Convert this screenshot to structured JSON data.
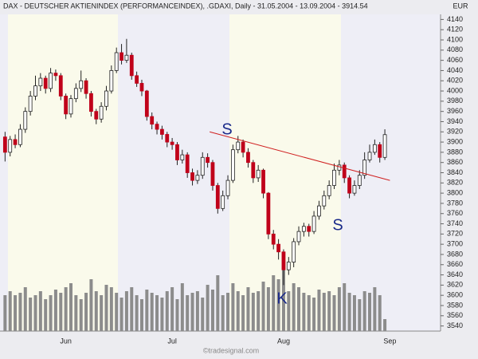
{
  "chart_data": {
    "type": "candlestick",
    "title": "DAX - DEUTSCHER AKTIENINDEX (PERFORMANCEINDEX), .GDAXI, Daily - 31.05.2004 - 13.09.2004 - 3914.54",
    "currency": "EUR",
    "credit": "©tradesignal.com",
    "up_color": "#ffffff",
    "down_color": "#c0001a",
    "volume_color": "#8c8c8c",
    "trendline_color": "#d02020",
    "open": [
      3910,
      3880,
      3905,
      3895,
      3925,
      3960,
      3990,
      4010,
      4025,
      4005,
      4035,
      4030,
      3990,
      3955,
      3985,
      4005,
      4020,
      3995,
      3960,
      3945,
      3970,
      4000,
      4040,
      4075,
      4060,
      4070,
      4030,
      4015,
      4000,
      3950,
      3935,
      3925,
      3915,
      3900,
      3895,
      3865,
      3875,
      3840,
      3825,
      3835,
      3870,
      3860,
      3815,
      3770,
      3795,
      3825,
      3885,
      3900,
      3880,
      3860,
      3830,
      3845,
      3800,
      3720,
      3700,
      3685,
      3650,
      3665,
      3705,
      3725,
      3735,
      3725,
      3755,
      3775,
      3795,
      3815,
      3845,
      3855,
      3830,
      3800,
      3815,
      3835,
      3865,
      3880,
      3895,
      3870
    ],
    "high": [
      3920,
      3912,
      3915,
      3935,
      3968,
      4000,
      4030,
      4035,
      4030,
      4045,
      4042,
      4035,
      3995,
      3992,
      4015,
      4040,
      4025,
      4000,
      3965,
      3978,
      4010,
      4050,
      4085,
      4092,
      4102,
      4075,
      4038,
      4022,
      4002,
      3958,
      3940,
      3932,
      3920,
      3908,
      3900,
      3885,
      3880,
      3848,
      3845,
      3880,
      3878,
      3865,
      3820,
      3805,
      3835,
      3895,
      3912,
      3905,
      3888,
      3865,
      3855,
      3848,
      3802,
      3728,
      3710,
      3690,
      3675,
      3712,
      3735,
      3742,
      3740,
      3765,
      3785,
      3805,
      3825,
      3858,
      3865,
      3860,
      3835,
      3825,
      3845,
      3880,
      3895,
      3905,
      3900,
      3925
    ],
    "low": [
      3862,
      3872,
      3888,
      3890,
      3918,
      3952,
      3982,
      4000,
      3995,
      3998,
      4020,
      3982,
      3945,
      3948,
      3978,
      3998,
      3985,
      3950,
      3935,
      3938,
      3962,
      3995,
      4035,
      4052,
      4055,
      4022,
      4008,
      3990,
      3942,
      3925,
      3915,
      3905,
      3890,
      3885,
      3855,
      3858,
      3830,
      3815,
      3818,
      3828,
      3850,
      3805,
      3760,
      3765,
      3788,
      3820,
      3878,
      3870,
      3850,
      3820,
      3822,
      3790,
      3710,
      3690,
      3670,
      3620,
      3640,
      3655,
      3698,
      3715,
      3715,
      3720,
      3748,
      3768,
      3788,
      3808,
      3835,
      3820,
      3790,
      3795,
      3808,
      3828,
      3860,
      3875,
      3860,
      3865
    ],
    "close": [
      3880,
      3905,
      3895,
      3925,
      3960,
      3990,
      4010,
      4025,
      4005,
      4035,
      4030,
      3990,
      3955,
      3985,
      4005,
      4020,
      3995,
      3960,
      3945,
      3970,
      4000,
      4040,
      4075,
      4060,
      4070,
      4030,
      4015,
      4000,
      3950,
      3935,
      3925,
      3915,
      3900,
      3895,
      3865,
      3875,
      3840,
      3825,
      3835,
      3870,
      3860,
      3815,
      3770,
      3795,
      3825,
      3885,
      3900,
      3880,
      3860,
      3830,
      3845,
      3800,
      3720,
      3700,
      3685,
      3650,
      3665,
      3705,
      3725,
      3735,
      3725,
      3755,
      3775,
      3795,
      3815,
      3845,
      3855,
      3830,
      3800,
      3815,
      3835,
      3865,
      3880,
      3895,
      3870,
      3914.54
    ],
    "volume": [
      45,
      50,
      45,
      48,
      55,
      42,
      45,
      50,
      40,
      45,
      52,
      48,
      55,
      60,
      45,
      40,
      48,
      65,
      50,
      45,
      58,
      55,
      48,
      42,
      50,
      55,
      45,
      40,
      52,
      48,
      45,
      42,
      50,
      55,
      40,
      60,
      45,
      48,
      50,
      42,
      58,
      52,
      70,
      45,
      48,
      60,
      50,
      45,
      55,
      48,
      50,
      62,
      55,
      70,
      65,
      95,
      50,
      60,
      55,
      48,
      45,
      42,
      52,
      48,
      50,
      45,
      55,
      60,
      48,
      45,
      40,
      50,
      48,
      55,
      45,
      15
    ],
    "vlim": [
      0,
      100
    ],
    "xlim": [
      -1,
      86
    ],
    "xticks": [
      {
        "value": 12,
        "label": "Jun"
      },
      {
        "value": 33,
        "label": "Jul"
      },
      {
        "value": 55,
        "label": "Aug"
      },
      {
        "value": 76,
        "label": "Sep"
      }
    ],
    "ylim": [
      3530,
      4150
    ],
    "yticks": [
      3540,
      3560,
      3580,
      3600,
      3620,
      3640,
      3660,
      3680,
      3700,
      3720,
      3740,
      3760,
      3780,
      3800,
      3820,
      3840,
      3860,
      3880,
      3900,
      3920,
      3940,
      3960,
      3980,
      4000,
      4020,
      4040,
      4060,
      4080,
      4100,
      4120,
      4140
    ],
    "trendline": {
      "x": [
        40.4,
        76
      ],
      "y": [
        3920,
        3825
      ]
    },
    "annotations": [
      "S",
      "S",
      "K"
    ]
  }
}
